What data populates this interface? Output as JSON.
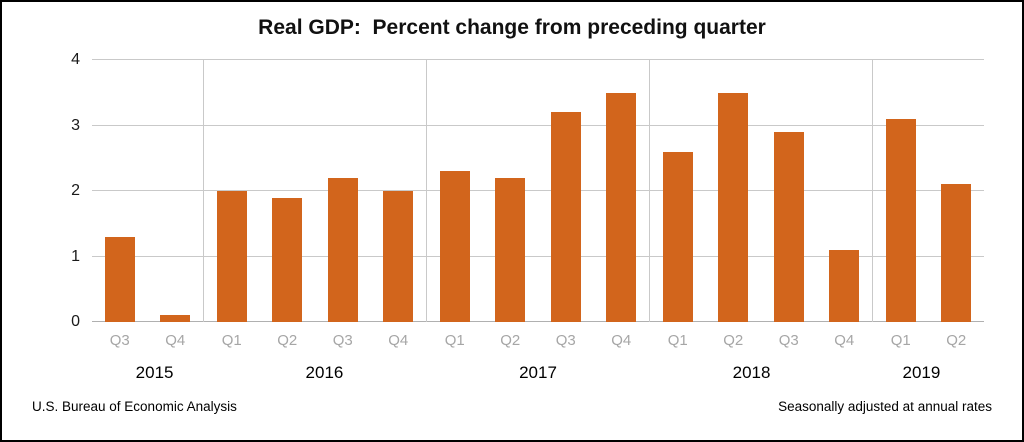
{
  "title": "Real GDP:  Percent change from preceding quarter",
  "footer": {
    "left": "U.S. Bureau of Economic Analysis",
    "right": "Seasonally adjusted at annual rates"
  },
  "colors": {
    "bar": "#d2651c",
    "gridline": "#c9c9c9",
    "quarter_label": "#a6a6a6"
  },
  "chart_data": {
    "type": "bar",
    "title": "Real GDP:  Percent change from preceding quarter",
    "xlabel": "",
    "ylabel": "",
    "ylim": [
      0,
      4
    ],
    "yticks": [
      0,
      1,
      2,
      3,
      4
    ],
    "grid": true,
    "bar_color": "#d2651c",
    "groups": [
      {
        "year": "2015",
        "quarters": [
          "Q3",
          "Q4"
        ],
        "values": [
          1.3,
          0.1
        ]
      },
      {
        "year": "2016",
        "quarters": [
          "Q1",
          "Q2",
          "Q3",
          "Q4"
        ],
        "values": [
          2.0,
          1.9,
          2.2,
          2.0
        ]
      },
      {
        "year": "2017",
        "quarters": [
          "Q1",
          "Q2",
          "Q3",
          "Q4"
        ],
        "values": [
          2.3,
          2.2,
          3.2,
          3.5
        ]
      },
      {
        "year": "2018",
        "quarters": [
          "Q1",
          "Q2",
          "Q3",
          "Q4"
        ],
        "values": [
          2.6,
          3.5,
          2.9,
          1.1
        ]
      },
      {
        "year": "2019",
        "quarters": [
          "Q1",
          "Q2"
        ],
        "values": [
          3.1,
          2.1
        ]
      }
    ],
    "categories": [
      "2015 Q3",
      "2015 Q4",
      "2016 Q1",
      "2016 Q2",
      "2016 Q3",
      "2016 Q4",
      "2017 Q1",
      "2017 Q2",
      "2017 Q3",
      "2017 Q4",
      "2018 Q1",
      "2018 Q2",
      "2018 Q3",
      "2018 Q4",
      "2019 Q1",
      "2019 Q2"
    ],
    "values": [
      1.3,
      0.1,
      2.0,
      1.9,
      2.2,
      2.0,
      2.3,
      2.2,
      3.2,
      3.5,
      2.6,
      3.5,
      2.9,
      1.1,
      3.1,
      2.1
    ],
    "legend": null
  }
}
